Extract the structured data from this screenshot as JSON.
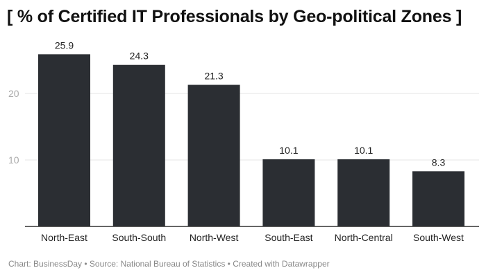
{
  "chart_data": {
    "type": "bar",
    "title": "[ % of Certified IT Professionals by Geo-political Zones ]",
    "categories": [
      "North-East",
      "South-South",
      "North-West",
      "South-East",
      "North-Central",
      "South-West"
    ],
    "values": [
      25.9,
      24.3,
      21.3,
      10.1,
      10.1,
      8.3
    ],
    "yticks": [
      10,
      20
    ],
    "ylim": [
      0,
      27
    ],
    "grid": true,
    "bar_color": "#2b2e33",
    "footer": "Chart: BusinessDay • Source: National Bureau of Statistics • Created with Datawrapper"
  }
}
